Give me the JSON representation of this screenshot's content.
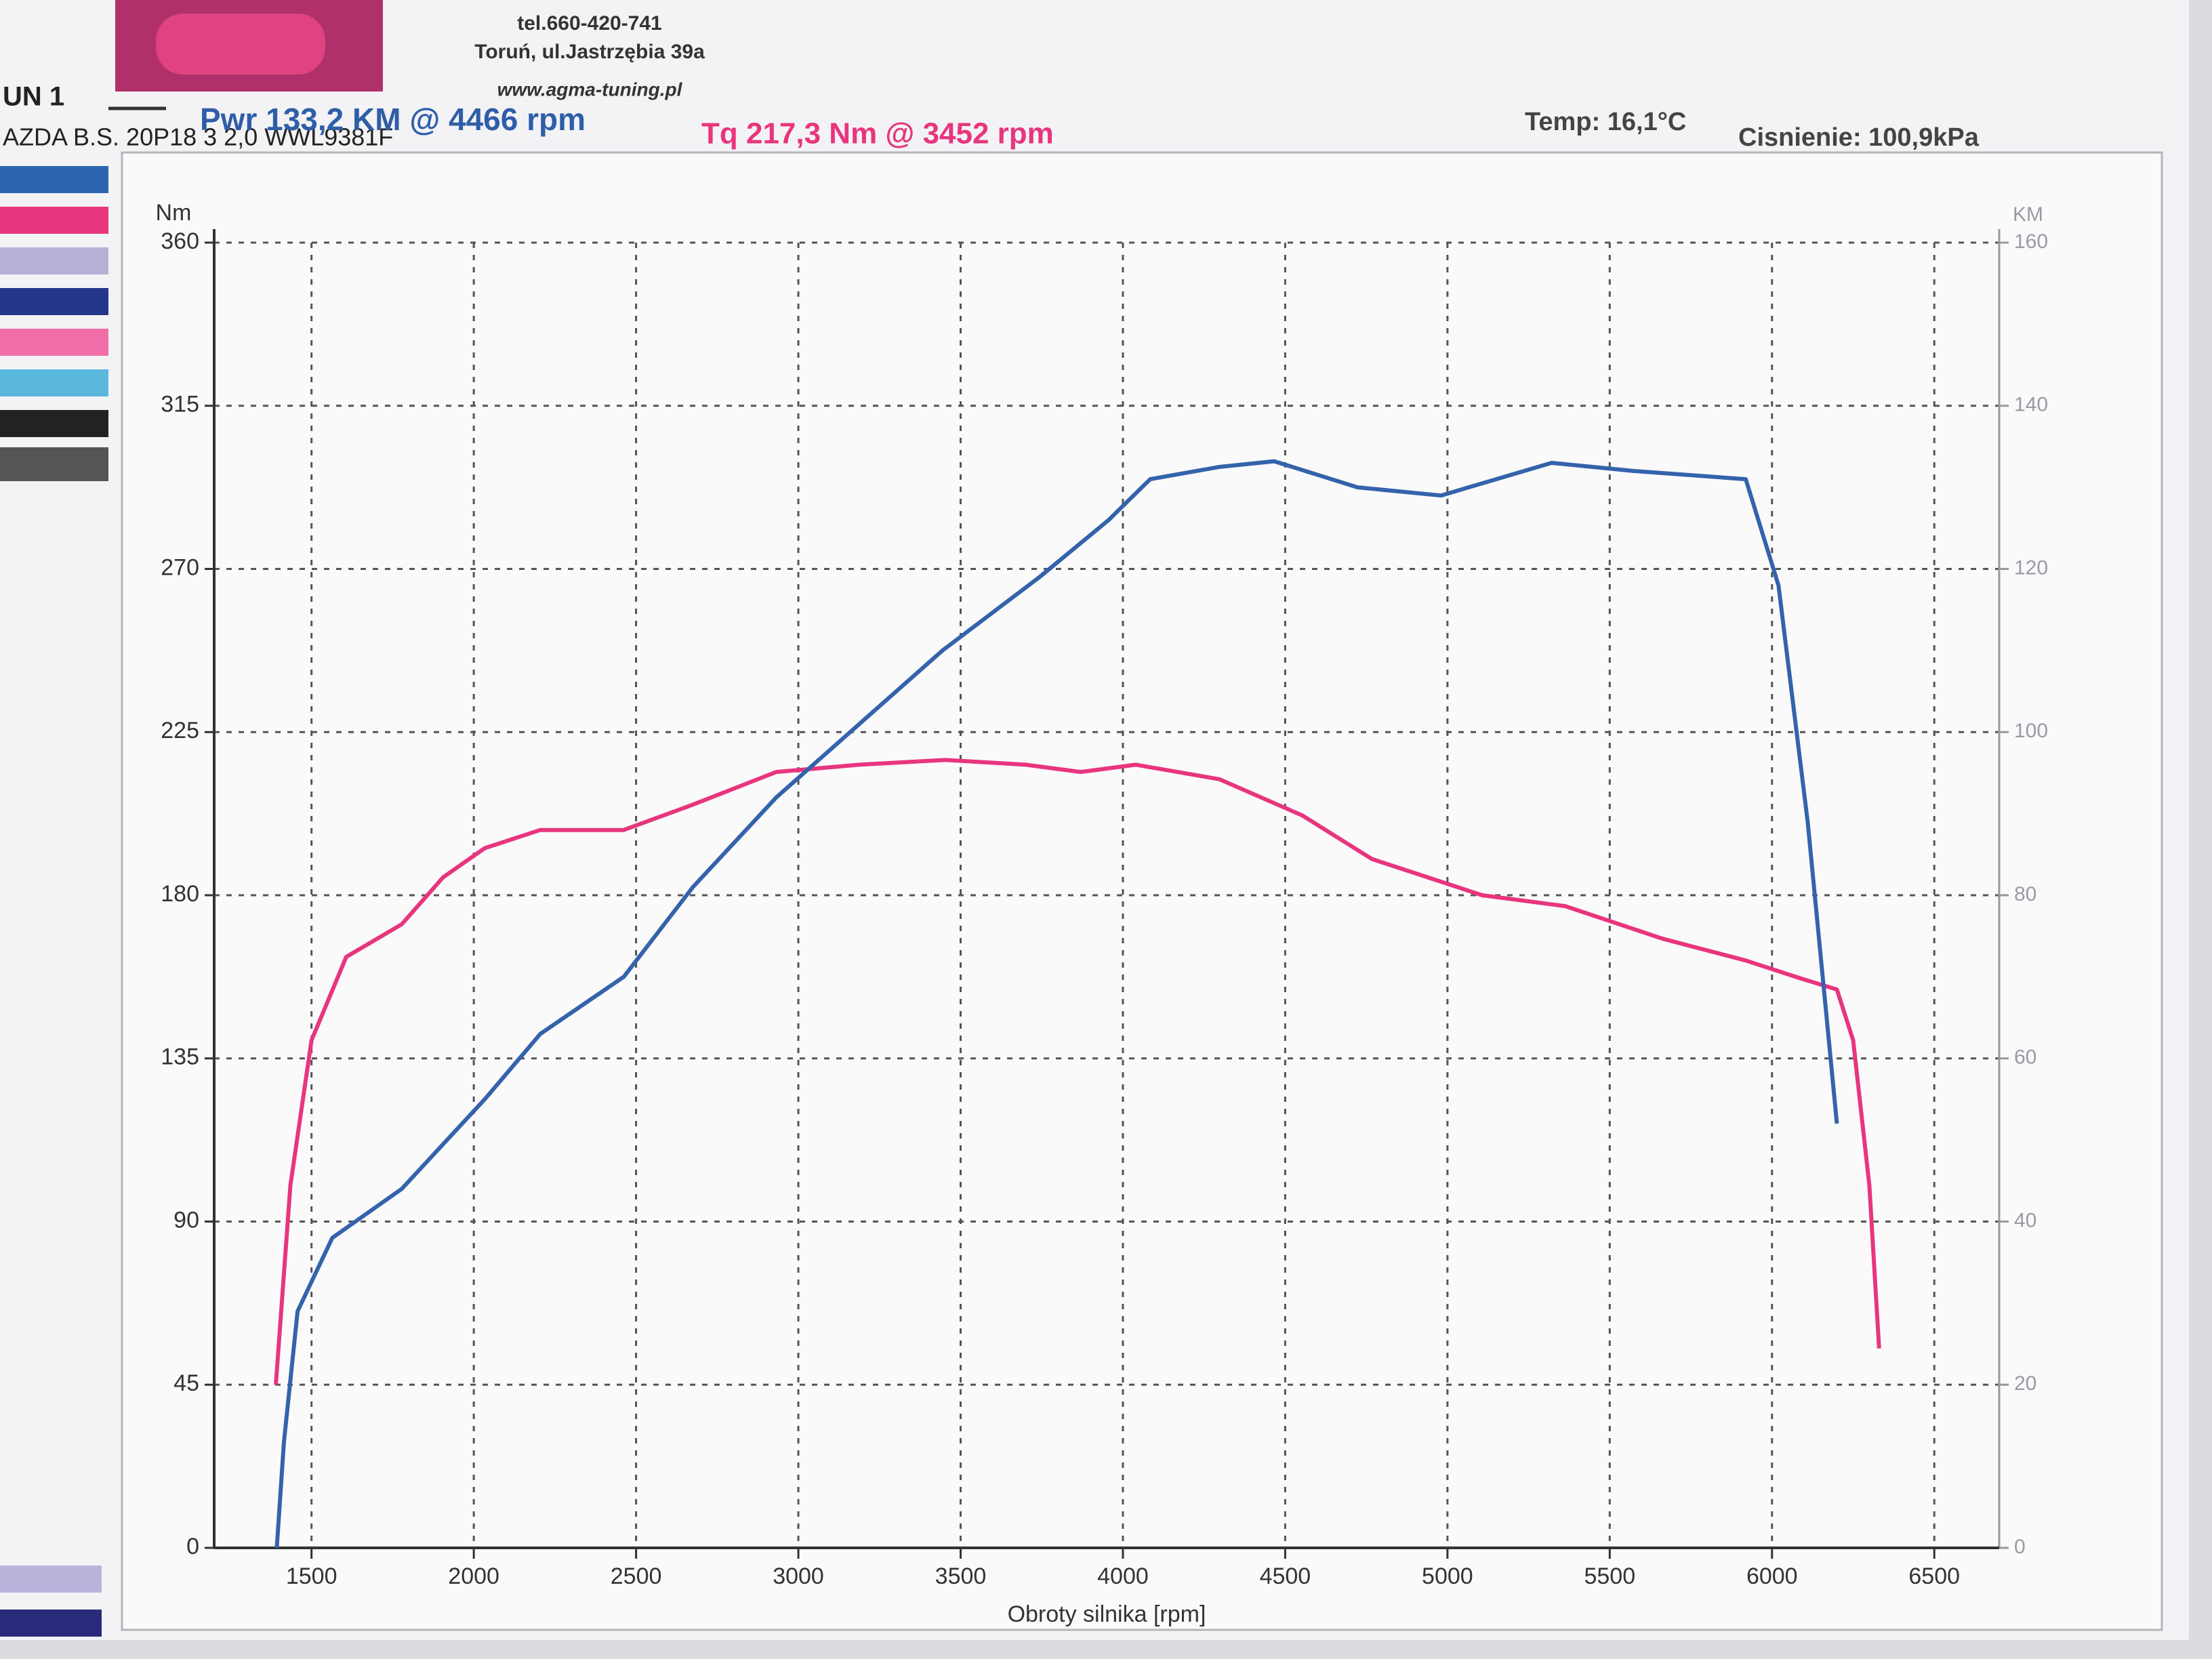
{
  "header": {
    "tel": "tel.660-420-741",
    "address": "Toruń, ul.Jastrzębia 39a",
    "web": "www.agma-tuning.pl",
    "run": "UN 1",
    "car": "AZDA B.S. 20P18 3 2,0 WWL9381F",
    "pwr": "Pwr  133,2 KM @ 4466 rpm",
    "tq": "Tq 217,3 Nm @ 3452 rpm",
    "temp": "Temp: 16,1°C",
    "pressure": "Cisnienie: 100,9kPa"
  },
  "chart_data": {
    "type": "line",
    "y_label": "Nm",
    "y2_label": "KM",
    "x_label": "Obroty silnika [rpm]",
    "xlim": [
      1200,
      6700
    ],
    "xticks": [
      1500,
      2000,
      2500,
      3000,
      3500,
      4000,
      4500,
      5000,
      5500,
      6000,
      6500
    ],
    "ylim": [
      0,
      360
    ],
    "yticks": [
      0,
      45,
      90,
      135,
      180,
      225,
      270,
      315,
      360
    ],
    "y2lim": [
      0,
      160
    ],
    "y2ticks": [
      0,
      20,
      40,
      60,
      80,
      100,
      120,
      140,
      160
    ],
    "grid": true,
    "series": [
      {
        "color": "#e8357e",
        "x": [
          1390,
          1435,
          1500,
          1607,
          1778,
          1906,
          2034,
          2205,
          2462,
          2675,
          2932,
          3188,
          3452,
          3700,
          3870,
          4040,
          4297,
          4553,
          4767,
          5107,
          5363,
          5663,
          5919,
          6090,
          6200,
          6250,
          6300,
          6330
        ],
        "values": [
          45,
          100,
          140,
          163,
          172,
          185,
          193,
          198,
          198,
          205,
          214,
          216,
          217.3,
          216,
          214,
          216,
          212,
          202,
          190,
          180,
          177,
          168,
          162,
          157,
          154,
          140,
          100,
          55
        ]
      },
      {
        "color": "#3463ab",
        "axis": "y2",
        "x": [
          1393,
          1415,
          1457,
          1564,
          1778,
          2034,
          2205,
          2462,
          2675,
          2932,
          3188,
          3444,
          3743,
          3956,
          4084,
          4297,
          4466,
          4723,
          4980,
          5321,
          5577,
          5919,
          6020,
          6110,
          6200
        ],
        "values": [
          0,
          13,
          29,
          38,
          44,
          55,
          63,
          70,
          81,
          92,
          101,
          110,
          119,
          126,
          131,
          132.5,
          133.2,
          130,
          129,
          133,
          132,
          131,
          118,
          89,
          52
        ]
      }
    ]
  }
}
